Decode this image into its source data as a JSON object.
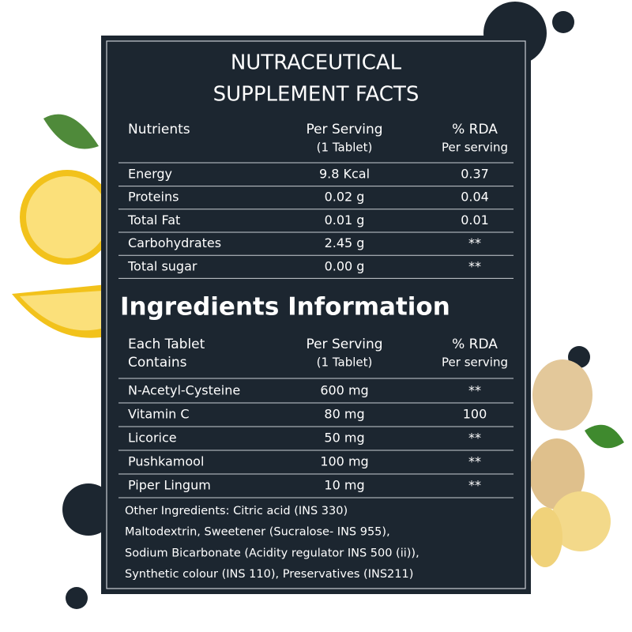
{
  "title": [
    "NUTRACEUTICAL",
    "SUPPLEMENT FACTS"
  ],
  "nutrition": {
    "header": [
      [
        "Nutrients"
      ],
      [
        "Per Serving",
        "(1 Tablet)"
      ],
      [
        "% RDA",
        "Per serving"
      ]
    ],
    "rows": [
      [
        "Energy",
        "9.8 Kcal",
        "0.37"
      ],
      [
        "Proteins",
        "0.02 g",
        "0.04"
      ],
      [
        "Total Fat",
        "0.01 g",
        "0.01"
      ],
      [
        "Carbohydrates",
        "2.45 g",
        "**"
      ],
      [
        "Total sugar",
        "0.00 g",
        "**"
      ]
    ]
  },
  "ingredients": {
    "title": "Ingredients Information",
    "header": [
      [
        "Each Tablet",
        "Contains"
      ],
      [
        "Per Serving",
        "(1 Tablet)"
      ],
      [
        "% RDA",
        "Per serving"
      ]
    ],
    "rows": [
      [
        "N-Acetyl-Cysteine",
        "600 mg",
        "**"
      ],
      [
        "Vitamin C",
        "80 mg",
        "100"
      ],
      [
        "Licorice",
        "50 mg",
        "**"
      ],
      [
        "Pushkamool",
        "100 mg",
        "**"
      ],
      [
        "Piper Lingum",
        "10 mg",
        "**"
      ]
    ]
  },
  "other_ingredients": [
    "Other Ingredients: Citric acid (INS 330)",
    "Maltodextrin, Sweetener (Sucralose- INS 955),",
    "Sodium Bicarbonate (Acidity regulator INS 500 (ii)),",
    "Synthetic colour (INS 110), Preservatives (INS211)"
  ]
}
